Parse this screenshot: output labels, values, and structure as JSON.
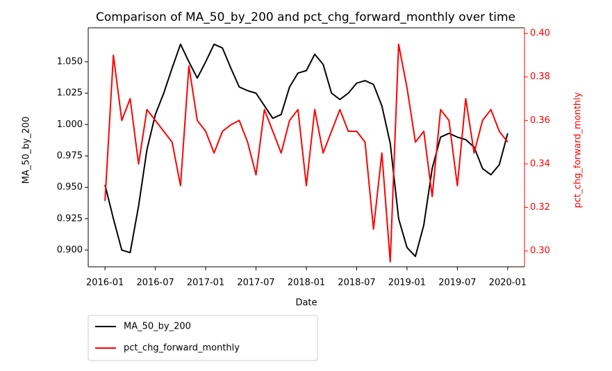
{
  "chart_data": {
    "type": "line",
    "title": "Comparison of MA_50_by_200 and pct_chg_forward_monthly over time",
    "x_label": "Date",
    "y_label": "MA_50_by_200",
    "y2_label": "pct_chg_forward_monthly",
    "y2_color": "#ff0000",
    "x": [
      "2016-01",
      "2016-02",
      "2016-03",
      "2016-04",
      "2016-05",
      "2016-06",
      "2016-07",
      "2016-08",
      "2016-09",
      "2016-10",
      "2016-11",
      "2016-12",
      "2017-01",
      "2017-02",
      "2017-03",
      "2017-04",
      "2017-05",
      "2017-06",
      "2017-07",
      "2017-08",
      "2017-09",
      "2017-10",
      "2017-11",
      "2017-12",
      "2018-01",
      "2018-02",
      "2018-03",
      "2018-04",
      "2018-05",
      "2018-06",
      "2018-07",
      "2018-08",
      "2018-09",
      "2018-10",
      "2018-11",
      "2018-12",
      "2019-01",
      "2019-02",
      "2019-03",
      "2019-04",
      "2019-05",
      "2019-06",
      "2019-07",
      "2019-08",
      "2019-09",
      "2019-10",
      "2019-11",
      "2019-12",
      "2020-01"
    ],
    "xlim": [
      "2015-11",
      "2020-03"
    ],
    "xticks": [
      "2016-01",
      "2016-07",
      "2017-01",
      "2017-07",
      "2018-01",
      "2018-07",
      "2019-01",
      "2019-07",
      "2020-01"
    ],
    "ylim": [
      0.8867,
      1.0771
    ],
    "yticks": [
      {
        "value": 0.9,
        "label": "0.900"
      },
      0.925,
      {
        "value": 0.95,
        "label": "0.950"
      },
      0.975,
      {
        "value": 1.0,
        "label": "1.000"
      },
      1.025,
      {
        "value": 1.05,
        "label": "1.050"
      }
    ],
    "y2lim": [
      0.2927,
      0.4026
    ],
    "y2ticks": [
      {
        "value": 0.3,
        "label": "0.30"
      },
      0.32,
      0.34,
      0.36,
      0.38,
      {
        "value": 0.4,
        "label": "0.40"
      }
    ],
    "legend": "below-left",
    "series": [
      {
        "name": "MA_50_by_200",
        "color": "#000000",
        "values": [
          0.952,
          0.925,
          0.9,
          0.898,
          0.935,
          0.98,
          1.008,
          1.025,
          1.045,
          1.064,
          1.05,
          1.037,
          1.05,
          1.064,
          1.061,
          1.045,
          1.03,
          1.027,
          1.025,
          1.015,
          1.005,
          1.008,
          1.03,
          1.041,
          1.043,
          1.056,
          1.048,
          1.025,
          1.02,
          1.025,
          1.033,
          1.035,
          1.032,
          1.015,
          0.985,
          0.925,
          0.902,
          0.895,
          0.92,
          0.965,
          0.99,
          0.993,
          0.99,
          0.988,
          0.982,
          0.965,
          0.96,
          0.968,
          0.993
        ]
      },
      {
        "name": "pct_chg_forward_monthly",
        "color": "#ff0000",
        "axis": "y2",
        "values": [
          0.323,
          0.39,
          0.36,
          0.37,
          0.34,
          0.365,
          0.36,
          0.355,
          0.35,
          0.33,
          0.385,
          0.36,
          0.355,
          0.345,
          0.355,
          0.358,
          0.36,
          0.35,
          0.335,
          0.365,
          0.355,
          0.345,
          0.36,
          0.365,
          0.33,
          0.365,
          0.345,
          0.355,
          0.365,
          0.355,
          0.355,
          0.35,
          0.31,
          0.345,
          0.295,
          0.395,
          0.375,
          0.35,
          0.355,
          0.325,
          0.365,
          0.36,
          0.33,
          0.37,
          0.345,
          0.36,
          0.365,
          0.355,
          0.35
        ]
      }
    ]
  }
}
